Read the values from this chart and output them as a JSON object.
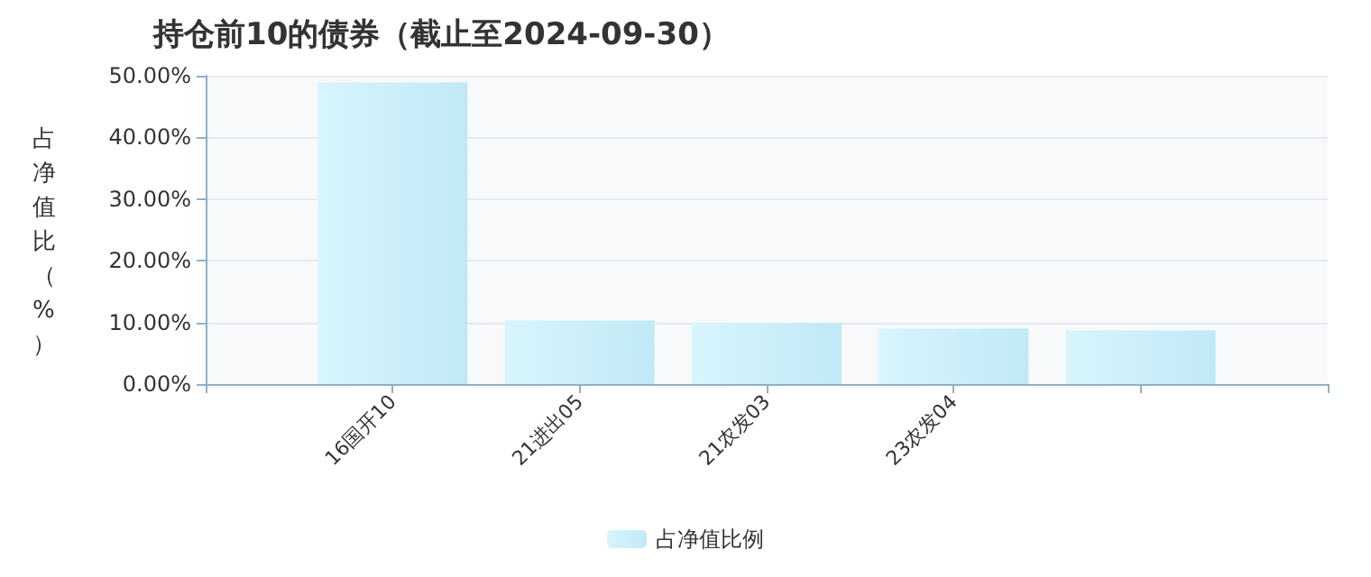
{
  "chart_data": {
    "type": "bar",
    "title": "持仓前10的债券（截止至2024-09-30）",
    "ylabel": "占净值比（%）",
    "categories": [
      "16国开10",
      "21进出05",
      "21农发03",
      "23农发04",
      null
    ],
    "series": [
      {
        "name": "占净值比例",
        "color": "#c0e9f6",
        "values": [
          48.9,
          10.3,
          9.9,
          9.0,
          8.7
        ]
      }
    ],
    "ylim": [
      0,
      50
    ],
    "yticks": [
      {
        "value": 0,
        "label": "0.00%"
      },
      {
        "value": 10,
        "label": "10.00%"
      },
      {
        "value": 20,
        "label": "20.00%"
      },
      {
        "value": 30,
        "label": "30.00%"
      },
      {
        "value": 40,
        "label": "40.00%"
      },
      {
        "value": 50,
        "label": "50.00%"
      }
    ],
    "grid": "y",
    "legend": "bottom"
  }
}
